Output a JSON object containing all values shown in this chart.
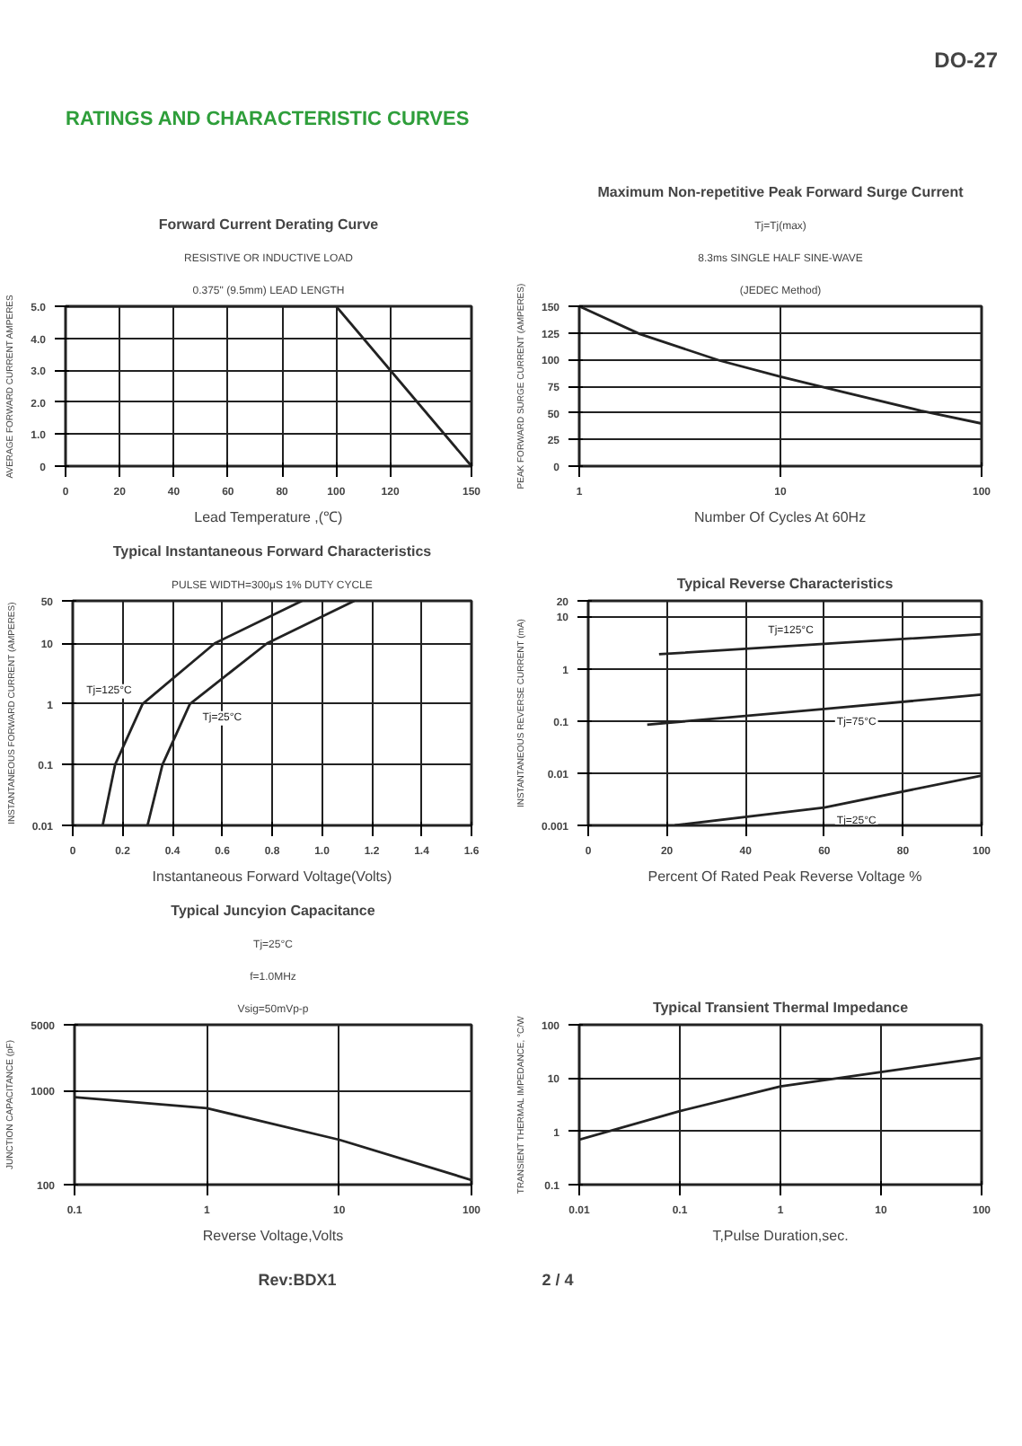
{
  "chart_data": [
    {
      "type": "other",
      "title": "RATINGS AND CHARACTERISTIC CURVES",
      "annotations": [
        "DO-27"
      ]
    },
    {
      "type": "line",
      "title": "Forward Current Derating Curve",
      "xlabel": "Lead Temperature ,(℃)",
      "ylabel": "AVERAGE FORWARD CURRENT AMPERES",
      "annotations": [
        "RESISTIVE OR INDUCTIVE LOAD",
        "0.375\" (9.5mm) LEAD LENGTH"
      ],
      "xlim": [
        0,
        150
      ],
      "xticks": [
        0,
        20,
        40,
        60,
        80,
        100,
        120,
        150
      ],
      "ylim": [
        0,
        5
      ],
      "yticks": [
        0,
        {
          "value": 1,
          "label": "1.0"
        },
        {
          "value": 2,
          "label": "2.0"
        },
        {
          "value": 3,
          "label": "3.0"
        },
        {
          "value": 4,
          "label": "4.0"
        },
        {
          "value": 5,
          "label": "5.0"
        }
      ],
      "grid": true,
      "series": [
        {
          "color": "#222222",
          "x": [
            0,
            100,
            150
          ],
          "values": [
            5,
            5,
            0
          ]
        }
      ]
    },
    {
      "type": "line",
      "title": "Maximum Non-repetitive Peak Forward Surge Current",
      "xlabel": "Number Of Cycles At 60Hz",
      "ylabel": "PEAK FORWARD SURGE CURRENT (AMPERES)",
      "annotations": [
        "Tj=Tj(max)",
        "8.3ms SINGLE HALF SINE-WAVE",
        "(JEDEC Method)"
      ],
      "log": "x",
      "xlim": [
        1,
        100
      ],
      "xticks": [
        1,
        10,
        100
      ],
      "ylim": [
        0,
        150
      ],
      "yticks": [
        0,
        25,
        50,
        75,
        100,
        125,
        150
      ],
      "grid": true,
      "series": [
        {
          "color": "#222222",
          "x": [
            1,
            2,
            5,
            10,
            20,
            50,
            100
          ],
          "values": [
            150,
            124,
            99,
            84,
            70,
            52,
            40
          ]
        }
      ]
    },
    {
      "type": "line",
      "title": "Typical Instantaneous Forward Characteristics",
      "xlabel": "Instantaneous Forward Voltage(Volts)",
      "ylabel": "INSTANTANEOUS FORWARD CURRENT (AMPERES)",
      "annotations": [
        "PULSE WIDTH=300μS 1% DUTY CYCLE"
      ],
      "log": "y",
      "xlim": [
        0,
        1.6
      ],
      "xticks": [
        0,
        0.2,
        0.4,
        0.6,
        0.8,
        {
          "value": 1,
          "label": "1.0"
        },
        1.2,
        1.4,
        1.6
      ],
      "ylim": [
        0.01,
        50
      ],
      "yticks": [
        0.01,
        0.1,
        1,
        10,
        50
      ],
      "grid": true,
      "series": [
        {
          "name": "Tj=125°C",
          "color": "#222222",
          "x": [
            0.12,
            0.17,
            0.28,
            0.57,
            0.92
          ],
          "values": [
            0.01,
            0.1,
            1,
            10,
            50
          ]
        },
        {
          "name": "Tj=25°C",
          "color": "#222222",
          "x": [
            0.3,
            0.36,
            0.47,
            0.78,
            1.13
          ],
          "values": [
            0.01,
            0.1,
            1,
            10,
            50
          ]
        }
      ]
    },
    {
      "type": "line",
      "title": "Typical Reverse Characteristics",
      "xlabel": "Percent Of Rated Peak Reverse Voltage %",
      "ylabel": "INSTANTANEOUS REVERSE CURRENT (mA)",
      "log": "y",
      "xlim": [
        0,
        100
      ],
      "xticks": [
        0,
        20,
        40,
        60,
        80,
        100
      ],
      "ylim": [
        0.001,
        20
      ],
      "yticks": [
        0.001,
        0.01,
        0.1,
        1,
        10,
        20
      ],
      "grid": true,
      "series": [
        {
          "name": "Tj=125°C",
          "color": "#222222",
          "x": [
            18,
            60,
            100
          ],
          "values": [
            1.9,
            3,
            4.6
          ]
        },
        {
          "name": "Tj=75°C",
          "color": "#222222",
          "x": [
            15,
            60,
            100
          ],
          "values": [
            0.085,
            0.17,
            0.32
          ]
        },
        {
          "name": "Tj=25°C",
          "color": "#222222",
          "x": [
            22,
            60,
            100
          ],
          "values": [
            0.001,
            0.0022,
            0.009
          ]
        }
      ]
    },
    {
      "type": "line",
      "title": "Typical Juncyion Capacitance",
      "xlabel": "Reverse Voltage,Volts",
      "ylabel": "JUNCTION CAPACITANCE (pF)",
      "annotations": [
        "Tj=25°C",
        "f=1.0MHz",
        "Vsig=50mVp-p"
      ],
      "log": "xy",
      "xlim": [
        0.1,
        100
      ],
      "xticks": [
        0.1,
        1,
        10,
        100
      ],
      "ylim": [
        100,
        5000
      ],
      "yticks": [
        100,
        1000,
        5000
      ],
      "grid": true,
      "series": [
        {
          "color": "#222222",
          "x": [
            0.1,
            1,
            10,
            100
          ],
          "values": [
            850,
            650,
            300,
            112
          ]
        }
      ]
    },
    {
      "type": "line",
      "title": "Typical Transient Thermal Impedance",
      "xlabel": "T,Pulse Duration,sec.",
      "ylabel": "TRANSIENT THERMAL IMPEDANCE, °C/W",
      "log": "xy",
      "xlim": [
        0.01,
        100
      ],
      "xticks": [
        0.01,
        0.1,
        1,
        10,
        100
      ],
      "ylim": [
        0.1,
        100
      ],
      "yticks": [
        0.1,
        1,
        10,
        100
      ],
      "grid": true,
      "series": [
        {
          "color": "#222222",
          "x": [
            0.01,
            0.1,
            1,
            10,
            100
          ],
          "values": [
            0.7,
            2.4,
            7,
            13,
            24
          ]
        }
      ]
    },
    {
      "type": "other",
      "annotations": [
        "Rev:BDX1",
        "2 / 4"
      ]
    }
  ]
}
